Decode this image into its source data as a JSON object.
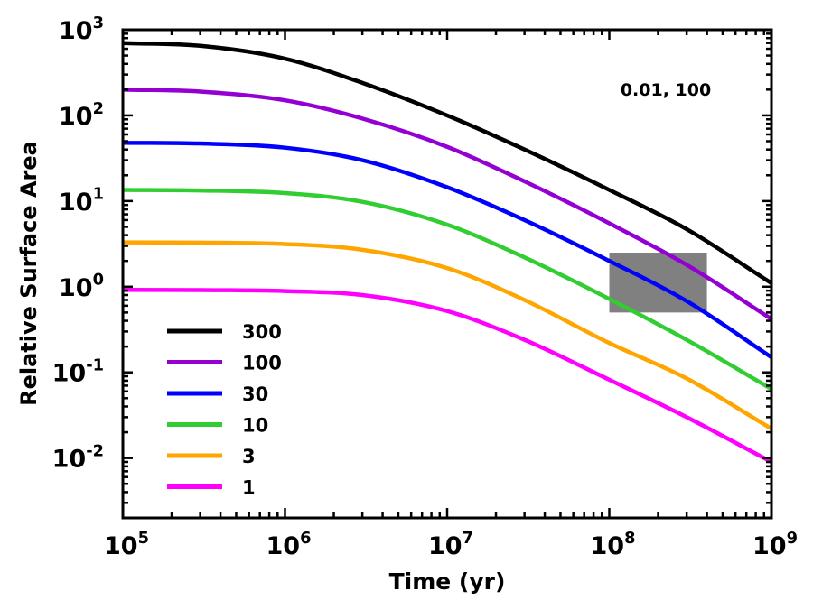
{
  "chart_data": {
    "type": "line",
    "title": "",
    "xlabel": "Time (yr)",
    "ylabel": "Relative Surface Area",
    "xscale": "log",
    "yscale": "log",
    "xlim": [
      100000,
      1000000000
    ],
    "ylim": [
      0.002,
      1000
    ],
    "x_ticks": [
      {
        "value": 100000,
        "base": "10",
        "exp": "5"
      },
      {
        "value": 1000000,
        "base": "10",
        "exp": "6"
      },
      {
        "value": 10000000,
        "base": "10",
        "exp": "7"
      },
      {
        "value": 100000000,
        "base": "10",
        "exp": "8"
      },
      {
        "value": 1000000000,
        "base": "10",
        "exp": "9"
      }
    ],
    "y_ticks": [
      {
        "value": 0.01,
        "base": "10",
        "exp": "-2"
      },
      {
        "value": 0.1,
        "base": "10",
        "exp": "-1"
      },
      {
        "value": 1,
        "base": "10",
        "exp": "0"
      },
      {
        "value": 10,
        "base": "10",
        "exp": "1"
      },
      {
        "value": 100,
        "base": "10",
        "exp": "2"
      },
      {
        "value": 1000,
        "base": "10",
        "exp": "3"
      }
    ],
    "annotation": "0.01, 100",
    "shaded_region": {
      "x_range": [
        100000000,
        400000000
      ],
      "y_range": [
        0.5,
        2.5
      ],
      "color": "#808080"
    },
    "legend_position": "bottom-left",
    "series": [
      {
        "name": "300",
        "color": "#000000",
        "x": [
          100000,
          300000,
          1000000,
          3000000,
          10000000,
          30000000,
          100000000,
          300000000,
          1000000000
        ],
        "values": [
          700,
          650,
          460,
          240,
          100,
          40,
          13.5,
          4.7,
          1.1
        ]
      },
      {
        "name": "100",
        "color": "#9400d3",
        "x": [
          100000,
          300000,
          1000000,
          3000000,
          10000000,
          30000000,
          100000000,
          300000000,
          1000000000
        ],
        "values": [
          200,
          190,
          150,
          92,
          43,
          17,
          5.5,
          1.8,
          0.42
        ]
      },
      {
        "name": "30",
        "color": "#0000ff",
        "x": [
          100000,
          300000,
          1000000,
          3000000,
          10000000,
          30000000,
          100000000,
          300000000,
          1000000000
        ],
        "values": [
          48,
          47,
          42,
          30,
          14.5,
          6,
          2,
          0.68,
          0.15
        ]
      },
      {
        "name": "10",
        "color": "#32cd32",
        "x": [
          100000,
          300000,
          1000000,
          3000000,
          10000000,
          30000000,
          100000000,
          300000000,
          1000000000
        ],
        "values": [
          13.5,
          13.3,
          12.4,
          9.8,
          5.3,
          2.2,
          0.72,
          0.24,
          0.064
        ]
      },
      {
        "name": "3",
        "color": "#ffa500",
        "x": [
          100000,
          300000,
          1000000,
          3000000,
          10000000,
          30000000,
          100000000,
          300000000,
          1000000000
        ],
        "values": [
          3.3,
          3.28,
          3.15,
          2.7,
          1.65,
          0.7,
          0.22,
          0.085,
          0.022
        ]
      },
      {
        "name": "1",
        "color": "#ff00ff",
        "x": [
          100000,
          300000,
          1000000,
          3000000,
          10000000,
          30000000,
          100000000,
          300000000,
          1000000000
        ],
        "values": [
          0.92,
          0.915,
          0.89,
          0.8,
          0.52,
          0.24,
          0.082,
          0.03,
          0.009
        ]
      }
    ]
  }
}
